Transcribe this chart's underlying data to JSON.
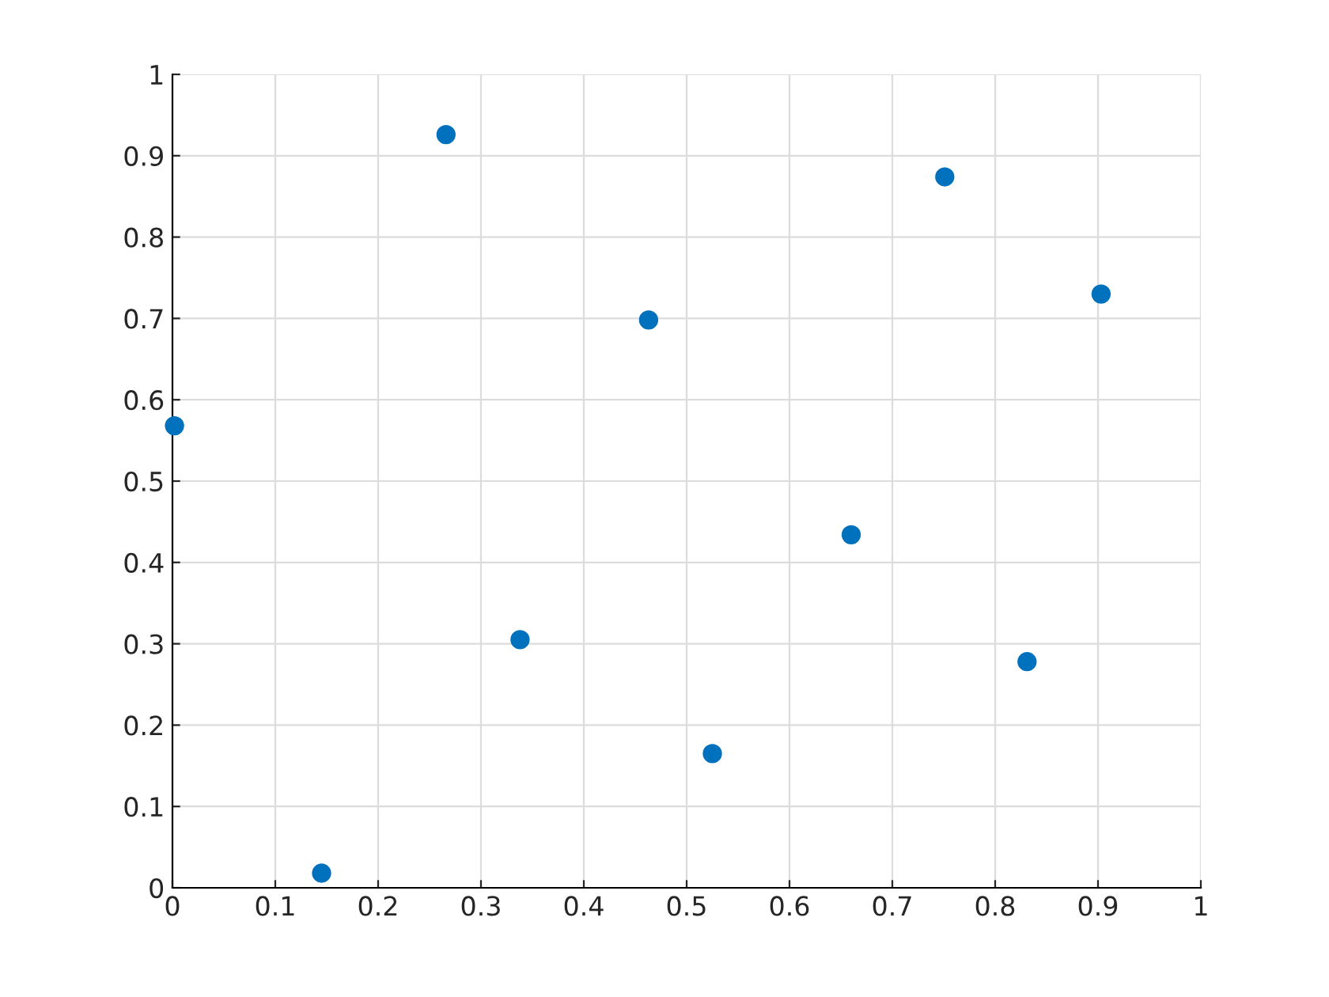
{
  "chart_data": {
    "type": "scatter",
    "x": [
      0.002,
      0.145,
      0.266,
      0.338,
      0.463,
      0.525,
      0.66,
      0.751,
      0.831,
      0.903
    ],
    "series": [
      {
        "color": "#0072bd",
        "values": [
          0.568,
          0.018,
          0.926,
          0.305,
          0.698,
          0.165,
          0.434,
          0.874,
          0.278,
          0.73
        ]
      }
    ],
    "xlim": [
      0,
      1
    ],
    "ylim": [
      0,
      1
    ],
    "xticks": [
      0,
      0.1,
      0.2,
      0.3,
      0.4,
      0.5,
      0.6,
      0.7,
      0.8,
      0.9,
      1
    ],
    "yticks": [
      0,
      0.1,
      0.2,
      0.3,
      0.4,
      0.5,
      0.6,
      0.7,
      0.8,
      0.9,
      1
    ],
    "grid": true,
    "marker": "circle"
  }
}
